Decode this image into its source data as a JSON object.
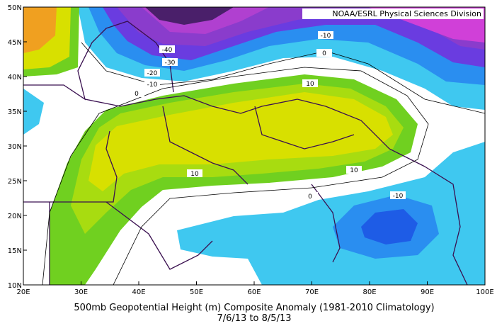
{
  "credit": "NOAA/ESRL Physical Sciences Division",
  "title": "500mb Geopotential Height (m) Composite Anomaly (1981-2010 Climatology)",
  "subtitle": "7/6/13  to 8/5/13",
  "longitude_labels": [
    "20E",
    "30E",
    "40E",
    "50E",
    "60E",
    "70E",
    "80E",
    "90E",
    "100E"
  ],
  "latitude_labels": [
    "50N",
    "45N",
    "40N",
    "35N",
    "30N",
    "25N",
    "20N",
    "15N",
    "10N"
  ],
  "contour_labels": [
    "-40",
    "-30",
    "-20",
    "-10",
    "0",
    "-10",
    "0",
    "10",
    "10",
    "10",
    "0",
    "-10"
  ]
}
